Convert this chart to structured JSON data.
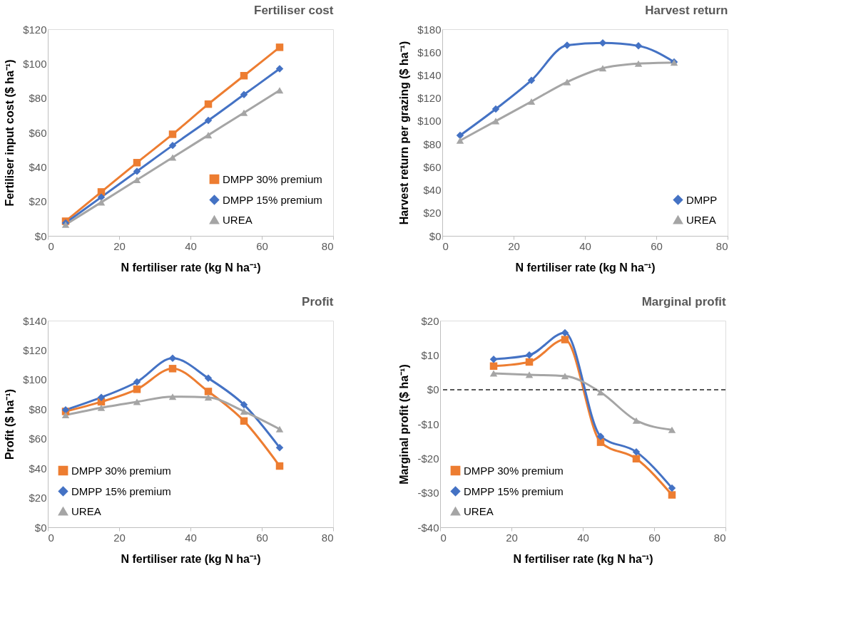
{
  "chart_data": [
    {
      "type": "line",
      "title": "Fertiliser cost",
      "xlabel": "N fertiliser rate (kg N ha⁻¹)",
      "ylabel": "Fertiliser input cost  ($ ha⁻¹)",
      "x": [
        5,
        15,
        25,
        35,
        45,
        55,
        65
      ],
      "series": [
        {
          "name": "DMPP 30% premium",
          "color": "#ed7d31",
          "marker": "square",
          "values": [
            8.5,
            25.5,
            42.5,
            59,
            76.5,
            93,
            109.5
          ]
        },
        {
          "name": "DMPP 15% premium",
          "color": "#4472c4",
          "marker": "diamond",
          "values": [
            7.5,
            22.5,
            37.5,
            52.5,
            67,
            82,
            97
          ]
        },
        {
          "name": "UREA",
          "color": "#a5a5a5",
          "marker": "triangle",
          "values": [
            6.5,
            19.5,
            32.5,
            45.5,
            58.5,
            71.5,
            84.5
          ]
        }
      ],
      "xlim": [
        0,
        80
      ],
      "xticks": [
        0,
        20,
        40,
        60,
        80
      ],
      "ylim": [
        0,
        120
      ],
      "yticks": [
        {
          "value": 0,
          "label": "$0"
        },
        {
          "value": 20,
          "label": "$20"
        },
        {
          "value": 40,
          "label": "$40"
        },
        {
          "value": 60,
          "label": "$60"
        },
        {
          "value": 80,
          "label": "$80"
        },
        {
          "value": 100,
          "label": "$100"
        },
        {
          "value": 120,
          "label": "$120"
        }
      ],
      "grid": false,
      "legend": "bottom right"
    },
    {
      "type": "line",
      "title": "Harvest  return",
      "xlabel": "N fertiliser rate (kg N ha⁻¹)",
      "ylabel": "Harvest  return per grazing  ($ ha⁻¹)",
      "x": [
        5,
        15,
        25,
        35,
        45,
        55,
        65
      ],
      "series": [
        {
          "name": "DMPP",
          "color": "#4472c4",
          "marker": "diamond",
          "values": [
            87.5,
            110.5,
            135.5,
            166,
            168,
            165.5,
            151.5
          ]
        },
        {
          "name": "UREA",
          "color": "#a5a5a5",
          "marker": "triangle",
          "values": [
            83,
            100,
            117,
            134,
            146,
            150,
            151
          ]
        }
      ],
      "xlim": [
        0,
        80
      ],
      "xticks": [
        0,
        20,
        40,
        60,
        80
      ],
      "ylim": [
        0,
        180
      ],
      "yticks": [
        {
          "value": 0,
          "label": "$0"
        },
        {
          "value": 20,
          "label": "$20"
        },
        {
          "value": 40,
          "label": "$40"
        },
        {
          "value": 60,
          "label": "$60"
        },
        {
          "value": 80,
          "label": "$80"
        },
        {
          "value": 100,
          "label": "$100"
        },
        {
          "value": 120,
          "label": "$120"
        },
        {
          "value": 140,
          "label": "$140"
        },
        {
          "value": 160,
          "label": "$160"
        },
        {
          "value": 180,
          "label": "$180"
        }
      ],
      "grid": false,
      "legend": "bottom right"
    },
    {
      "type": "line",
      "title": "Profit",
      "xlabel": "N fertiliser rate (kg N ha⁻¹)",
      "ylabel": "Profit ($ ha⁻¹)",
      "x": [
        5,
        15,
        25,
        35,
        45,
        55,
        65
      ],
      "series": [
        {
          "name": "DMPP 30% premium",
          "color": "#ed7d31",
          "marker": "square",
          "values": [
            78.5,
            85,
            93.5,
            107.5,
            92,
            72,
            41.5
          ]
        },
        {
          "name": "DMPP 15% premium",
          "color": "#4472c4",
          "marker": "diamond",
          "values": [
            79.5,
            88,
            98.5,
            114.5,
            101,
            83,
            54
          ]
        },
        {
          "name": "UREA",
          "color": "#a5a5a5",
          "marker": "triangle",
          "values": [
            76,
            81,
            85,
            88.5,
            88,
            78.5,
            66.5
          ]
        }
      ],
      "xlim": [
        0,
        80
      ],
      "xticks": [
        0,
        20,
        40,
        60,
        80
      ],
      "ylim": [
        0,
        140
      ],
      "yticks": [
        {
          "value": 0,
          "label": "$0"
        },
        {
          "value": 20,
          "label": "$20"
        },
        {
          "value": 40,
          "label": "$40"
        },
        {
          "value": 60,
          "label": "$60"
        },
        {
          "value": 80,
          "label": "$80"
        },
        {
          "value": 100,
          "label": "$100"
        },
        {
          "value": 120,
          "label": "$120"
        },
        {
          "value": 140,
          "label": "$140"
        }
      ],
      "grid": false,
      "legend": "bottom left"
    },
    {
      "type": "line",
      "title": "Marginal  profit",
      "xlabel": "N fertiliser rate (kg N ha⁻¹)",
      "ylabel": "Marginal  profit ($ ha⁻¹)",
      "x": [
        15,
        25,
        35,
        45,
        55,
        65
      ],
      "series": [
        {
          "name": "DMPP 30% premium",
          "color": "#ed7d31",
          "marker": "square",
          "values": [
            6.8,
            8,
            14.5,
            -15.3,
            -20.1,
            -30.6
          ]
        },
        {
          "name": "DMPP 15% premium",
          "color": "#4472c4",
          "marker": "diamond",
          "values": [
            8.8,
            10,
            16.5,
            -13.6,
            -18.1,
            -28.6
          ]
        },
        {
          "name": "UREA",
          "color": "#a5a5a5",
          "marker": "triangle",
          "values": [
            4.7,
            4.3,
            3.9,
            -0.8,
            -9,
            -11.7
          ]
        }
      ],
      "xlim": [
        0,
        80
      ],
      "xticks": [
        0,
        20,
        40,
        60,
        80
      ],
      "ylim": [
        -40,
        20
      ],
      "yticks": [
        {
          "value": -40,
          "label": "-$40"
        },
        {
          "value": -30,
          "label": "-$30"
        },
        {
          "value": -20,
          "label": "-$20"
        },
        {
          "value": -10,
          "label": "-$10"
        },
        {
          "value": 0,
          "label": "$0"
        },
        {
          "value": 10,
          "label": "$10"
        },
        {
          "value": 20,
          "label": "$20"
        }
      ],
      "ref_lines": [
        {
          "axis": "y",
          "value": 0,
          "color": "#595959",
          "line_style": "dashed"
        }
      ],
      "grid": false,
      "legend": "bottom left"
    }
  ]
}
